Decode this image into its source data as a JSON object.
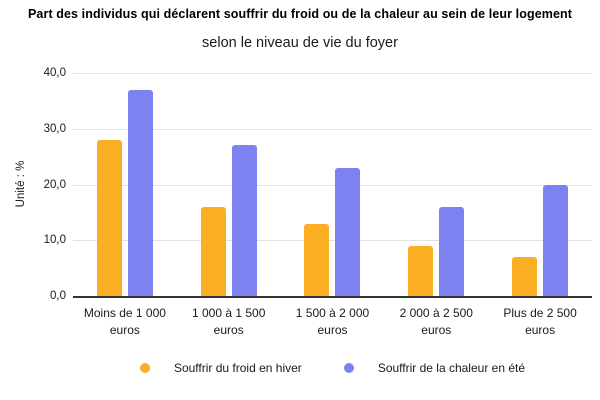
{
  "header": {
    "title": "Part des individus qui déclarent souffrir du froid ou de la chaleur au sein de leur logement",
    "subtitle": "selon le niveau de vie du foyer"
  },
  "chart_data": {
    "type": "bar",
    "title": "Part des individus qui déclarent souffrir du froid ou de la chaleur au sein de leur logement",
    "subtitle": "selon le niveau de vie du foyer",
    "ylabel": "Unité : %",
    "xlabel": "",
    "ylim": [
      0,
      40
    ],
    "yticks": [
      "40,0",
      "30,0",
      "20,0",
      "10,0",
      "0,0"
    ],
    "grid": true,
    "legend_position": "bottom",
    "categories": [
      "Moins de 1 000 euros",
      "1 000 à 1 500 euros",
      "1 500 à 2 000 euros",
      "2 000 à 2 500 euros",
      "Plus de 2 500 euros"
    ],
    "series": [
      {
        "name": "Souffrir du froid en hiver",
        "color": "#FBAE24",
        "values": [
          28,
          16,
          13,
          9,
          7
        ]
      },
      {
        "name": "Souffrir de la chaleur en été",
        "color": "#7E82F0",
        "values": [
          37,
          27,
          23,
          16,
          20
        ]
      }
    ]
  },
  "colors": {
    "axis": "#333333",
    "gridline": "#e2e2e2",
    "background": "#ffffff"
  }
}
